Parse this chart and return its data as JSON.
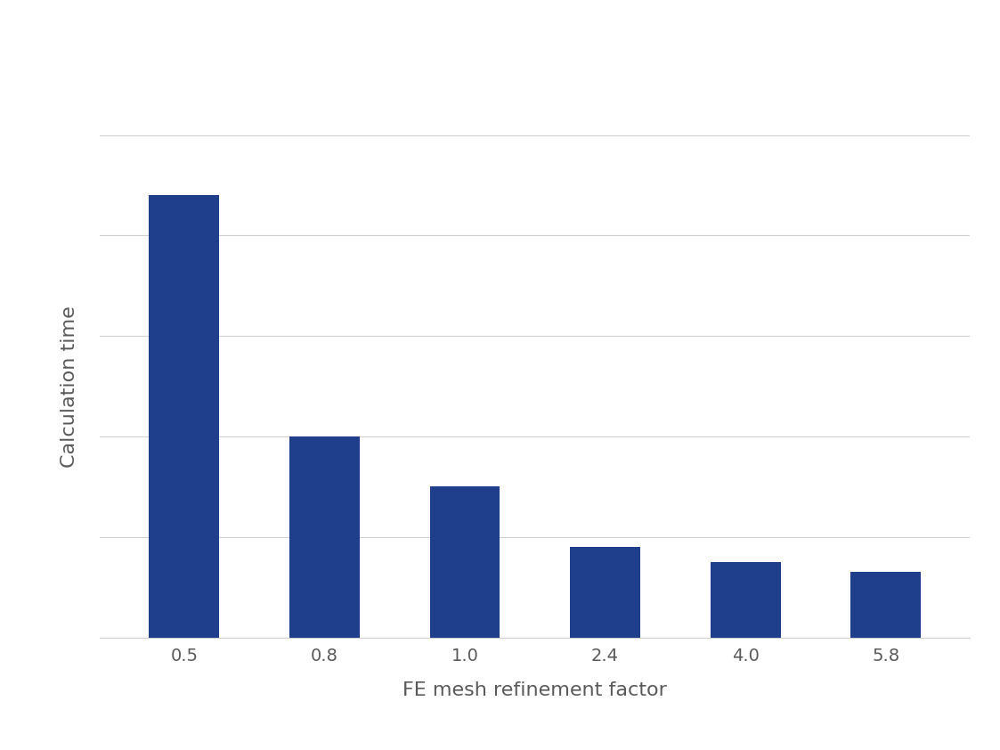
{
  "categories": [
    "0.5",
    "0.8",
    "1.0",
    "2.4",
    "4.0",
    "5.8"
  ],
  "values": [
    88,
    40,
    30,
    18,
    15,
    13
  ],
  "bar_color": "#1F3E8C",
  "xlabel": "FE mesh refinement factor",
  "ylabel": "Calculation time",
  "xlabel_fontsize": 16,
  "ylabel_fontsize": 16,
  "tick_fontsize": 14,
  "background_color": "#ffffff",
  "grid_color": "#d0d0d0",
  "ylim": [
    0,
    100
  ],
  "bar_width": 0.5,
  "grid_linewidth": 0.8,
  "n_gridlines": 5,
  "tick_color": "#595959",
  "label_color": "#595959"
}
